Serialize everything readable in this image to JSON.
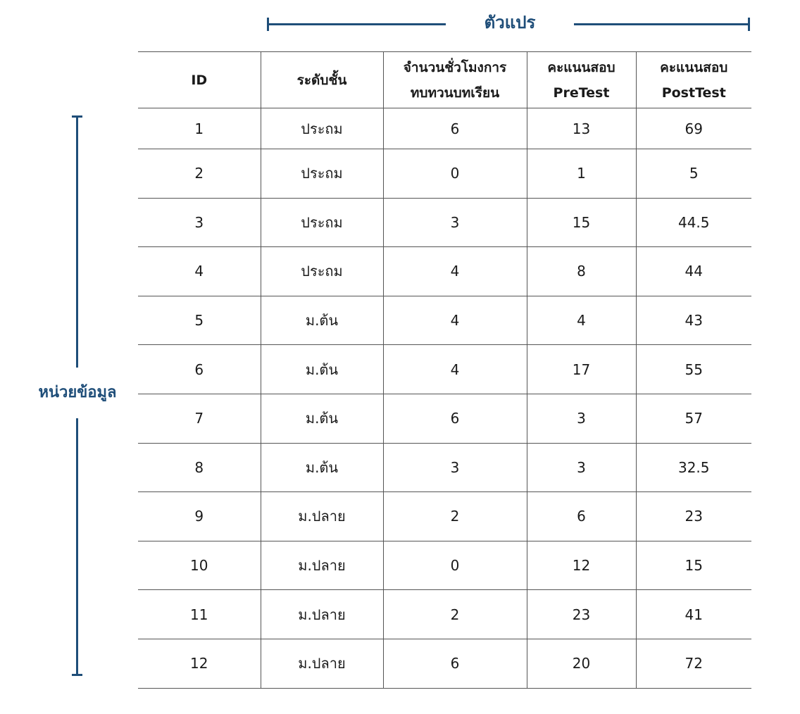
{
  "variables_label": "ตัวแปร",
  "units_label": "หน่วยข้อมูล",
  "table": {
    "headers": [
      [
        "ID"
      ],
      [
        "ระดับชั้น"
      ],
      [
        "จำนวนชั่วโมงการ",
        "ทบทวนบทเรียน"
      ],
      [
        "คะแนนสอบ",
        "PreTest"
      ],
      [
        "คะแนนสอบ",
        "PostTest"
      ]
    ],
    "rows": [
      [
        "1",
        "ประถม",
        "6",
        "13",
        "69"
      ],
      [
        "2",
        "ประถม",
        "0",
        "1",
        "5"
      ],
      [
        "3",
        "ประถม",
        "3",
        "15",
        "44.5"
      ],
      [
        "4",
        "ประถม",
        "4",
        "8",
        "44"
      ],
      [
        "5",
        "ม.ต้น",
        "4",
        "4",
        "43"
      ],
      [
        "6",
        "ม.ต้น",
        "4",
        "17",
        "55"
      ],
      [
        "7",
        "ม.ต้น",
        "6",
        "3",
        "57"
      ],
      [
        "8",
        "ม.ต้น",
        "3",
        "3",
        "32.5"
      ],
      [
        "9",
        "ม.ปลาย",
        "2",
        "6",
        "23"
      ],
      [
        "10",
        "ม.ปลาย",
        "0",
        "12",
        "15"
      ],
      [
        "11",
        "ม.ปลาย",
        "2",
        "23",
        "41"
      ],
      [
        "12",
        "ม.ปลาย",
        "6",
        "20",
        "72"
      ]
    ]
  }
}
